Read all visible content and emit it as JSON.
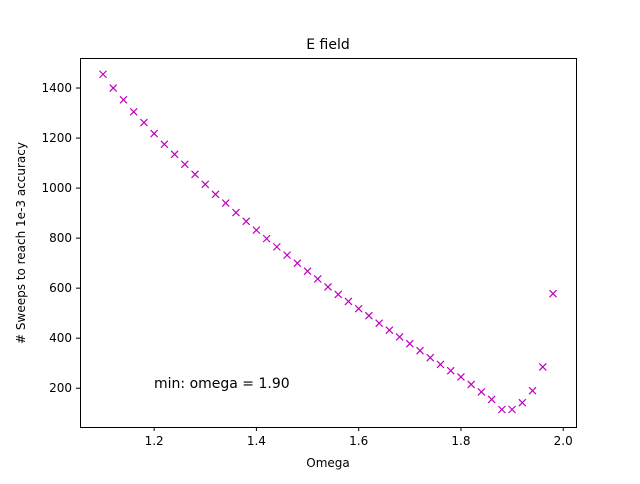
{
  "chart_data": {
    "type": "scatter",
    "title": "E field",
    "xlabel": "Omega",
    "ylabel": "# Sweeps to reach 1e-3 accuracy",
    "xlim": [
      1.055,
      2.025
    ],
    "ylim": [
      45,
      1520
    ],
    "xticks": [
      1.2,
      1.4,
      1.6,
      1.8,
      2.0
    ],
    "xtick_labels": [
      "1.2",
      "1.4",
      "1.6",
      "1.8",
      "2.0"
    ],
    "yticks": [
      200,
      400,
      600,
      800,
      1000,
      1200,
      1400
    ],
    "ytick_labels": [
      "200",
      "400",
      "600",
      "800",
      "1000",
      "1200",
      "1400"
    ],
    "grid": false,
    "marker": "x",
    "color": "#bf00bf",
    "annotation": "min: omega = 1.90",
    "x": [
      1.1,
      1.12,
      1.14,
      1.16,
      1.18,
      1.2,
      1.22,
      1.24,
      1.26,
      1.28,
      1.3,
      1.32,
      1.34,
      1.36,
      1.38,
      1.4,
      1.42,
      1.44,
      1.46,
      1.48,
      1.5,
      1.52,
      1.54,
      1.56,
      1.58,
      1.6,
      1.62,
      1.64,
      1.66,
      1.68,
      1.7,
      1.72,
      1.74,
      1.76,
      1.78,
      1.8,
      1.82,
      1.84,
      1.86,
      1.88,
      1.9,
      1.92,
      1.94,
      1.96,
      1.98
    ],
    "y": [
      1455,
      1400,
      1353,
      1305,
      1262,
      1218,
      1175,
      1135,
      1095,
      1055,
      1015,
      975,
      940,
      902,
      867,
      832,
      798,
      765,
      732,
      700,
      668,
      637,
      605,
      575,
      547,
      518,
      490,
      460,
      432,
      405,
      378,
      350,
      322,
      295,
      270,
      245,
      215,
      185,
      155,
      115,
      115,
      142,
      190,
      285,
      578
    ]
  }
}
